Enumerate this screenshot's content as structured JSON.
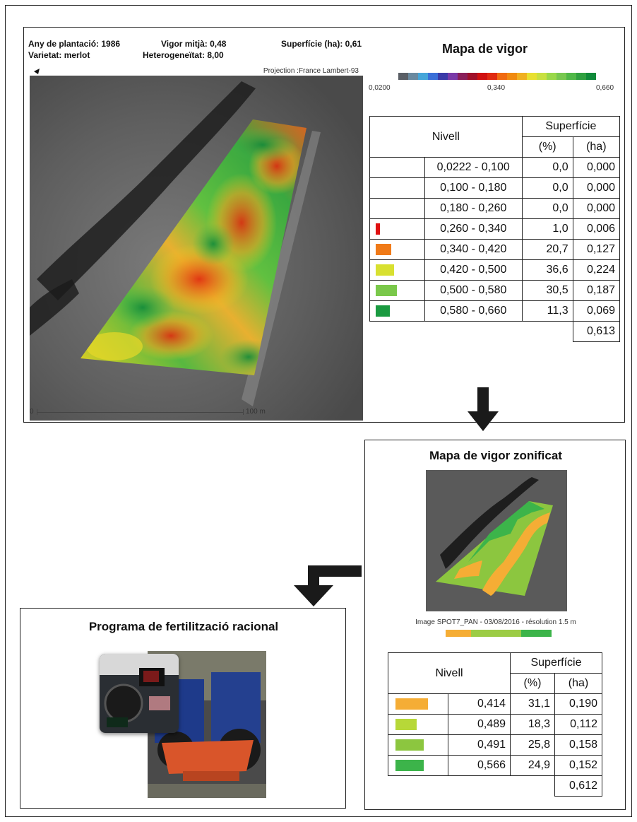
{
  "map_panel": {
    "info": {
      "planting_year": "Any de plantació: 1986",
      "variety": "Varietat: merlot",
      "vigor_mean": "Vigor mitjà: 0,48",
      "heterogeneity": "Heterogeneïtat: 8,00",
      "surface": "Superfície (ha): 0,61"
    },
    "projection": "Projection :France Lambert-93",
    "scale_zero": "0",
    "scale_end": "100 m"
  },
  "vigor_map": {
    "title": "Mapa de vigor",
    "scale_min": "0,0200",
    "scale_mid": "0,340",
    "scale_max": "0,660",
    "scale_colors": [
      "#5a5f66",
      "#6a8aa0",
      "#45a6d9",
      "#3a6fd8",
      "#3a3aa8",
      "#7a3aa8",
      "#8a1f5a",
      "#a0102a",
      "#d01010",
      "#e02a10",
      "#f06a10",
      "#f08a10",
      "#f0b020",
      "#e8e030",
      "#c8e040",
      "#9ad84a",
      "#78c850",
      "#50b848",
      "#30a040",
      "#108a3a"
    ],
    "table_header": {
      "level": "Nivell",
      "surface": "Superfície",
      "pct": "(%)",
      "ha": "(ha)"
    },
    "rows": [
      {
        "level": "0,0222 - 0,100",
        "pct": "0,0",
        "ha": "0,000",
        "color": ""
      },
      {
        "level": "0,100 - 0,180",
        "pct": "0,0",
        "ha": "0,000",
        "color": ""
      },
      {
        "level": "0,180 - 0,260",
        "pct": "0,0",
        "ha": "0,000",
        "color": ""
      },
      {
        "level": "0,260 - 0,340",
        "pct": "1,0",
        "ha": "0,006",
        "color": "#e01010"
      },
      {
        "level": "0,340 - 0,420",
        "pct": "20,7",
        "ha": "0,127",
        "color": "#f07a18"
      },
      {
        "level": "0,420 - 0,500",
        "pct": "36,6",
        "ha": "0,224",
        "color": "#d8e030"
      },
      {
        "level": "0,500 - 0,580",
        "pct": "30,5",
        "ha": "0,187",
        "color": "#7ac84a"
      },
      {
        "level": "0,580 - 0,660",
        "pct": "11,3",
        "ha": "0,069",
        "color": "#1a9a40"
      }
    ],
    "total": "0,613"
  },
  "zoned_map": {
    "title": "Mapa de vigor zonificat",
    "caption": "Image SPOT7_PAN - 03/08/2016 - résolution 1.5 m",
    "legend_colors": [
      "#f5ad35",
      "#9ccc45",
      "#3cb44a"
    ],
    "table_header": {
      "level": "Nivell",
      "surface": "Superfície",
      "pct": "(%)",
      "ha": "(ha)"
    },
    "rows": [
      {
        "level": "0,414",
        "pct": "31,1",
        "ha": "0,190",
        "color": "#f5ad35"
      },
      {
        "level": "0,489",
        "pct": "18,3",
        "ha": "0,112",
        "color": "#b7d838"
      },
      {
        "level": "0,491",
        "pct": "25,8",
        "ha": "0,158",
        "color": "#8cc63f"
      },
      {
        "level": "0,566",
        "pct": "24,9",
        "ha": "0,152",
        "color": "#3cb44a"
      }
    ],
    "total": "0,612"
  },
  "fertilization": {
    "title": "Programa de fertilització racional"
  }
}
